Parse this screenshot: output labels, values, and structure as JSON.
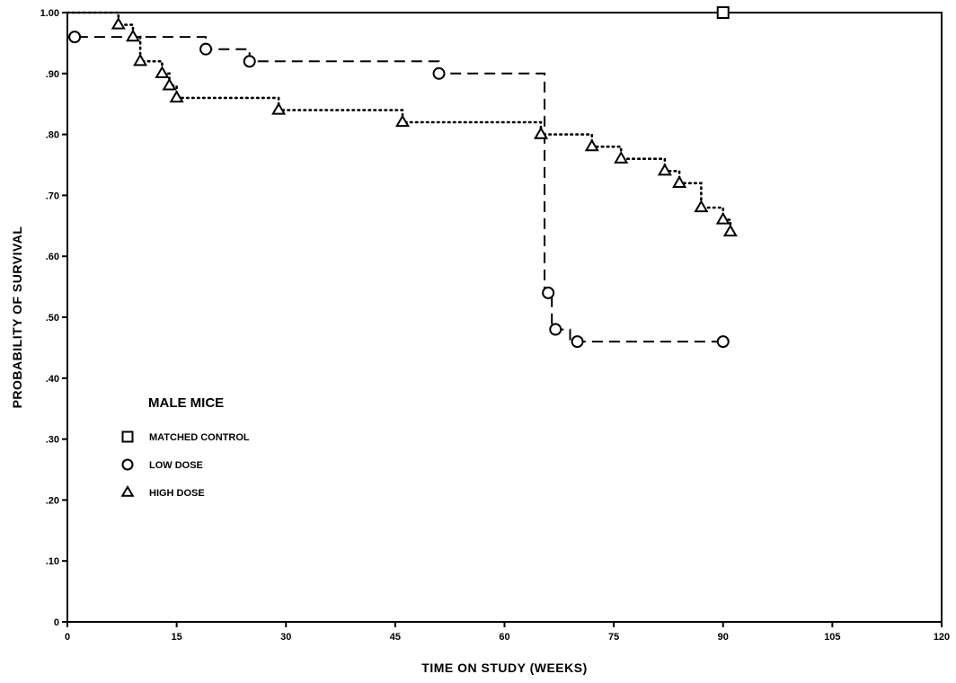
{
  "chart_data": {
    "type": "line",
    "subtype": "step",
    "xlabel": "TIME ON STUDY (WEEKS)",
    "ylabel": "PROBABILITY OF SURVIVAL",
    "xlim": [
      0,
      120
    ],
    "ylim": [
      0,
      1.0
    ],
    "x_ticks": [
      0,
      15,
      30,
      45,
      60,
      75,
      90,
      105,
      120
    ],
    "x_tick_labels": [
      "0",
      "15",
      "30",
      "45",
      "60",
      "75",
      "90",
      "105",
      "120"
    ],
    "y_ticks": [
      0,
      0.1,
      0.2,
      0.3,
      0.4,
      0.5,
      0.6,
      0.7,
      0.8,
      0.9,
      1.0
    ],
    "y_tick_labels": [
      "0",
      ".10",
      ".20",
      ".30",
      ".40",
      ".50",
      ".60",
      ".70",
      ".80",
      ".90",
      "1.00"
    ],
    "grid": false,
    "legend": {
      "title": "MALE MICE",
      "position": "lower-left"
    },
    "series": [
      {
        "name": "MATCHED CONTROL",
        "marker": "square",
        "line_style": "solid",
        "points": [
          [
            90,
            1.0
          ]
        ],
        "steps": [
          [
            0,
            1.0
          ],
          [
            90,
            1.0
          ]
        ]
      },
      {
        "name": "LOW DOSE",
        "marker": "circle",
        "line_style": "dashed",
        "points": [
          [
            1,
            0.96
          ],
          [
            19,
            0.94
          ],
          [
            25,
            0.92
          ],
          [
            51,
            0.9
          ],
          [
            66,
            0.54
          ],
          [
            67,
            0.48
          ],
          [
            70,
            0.46
          ],
          [
            90,
            0.46
          ]
        ],
        "steps": [
          [
            0,
            1.0
          ],
          [
            0,
            0.96
          ],
          [
            19,
            0.96
          ],
          [
            19,
            0.94
          ],
          [
            25,
            0.94
          ],
          [
            25,
            0.92
          ],
          [
            51,
            0.92
          ],
          [
            51,
            0.9
          ],
          [
            65.5,
            0.9
          ],
          [
            65.5,
            0.54
          ],
          [
            66.5,
            0.54
          ],
          [
            66.5,
            0.48
          ],
          [
            69,
            0.48
          ],
          [
            69,
            0.46
          ],
          [
            90,
            0.46
          ]
        ]
      },
      {
        "name": "HIGH DOSE",
        "marker": "triangle",
        "line_style": "dotted",
        "points": [
          [
            7,
            0.98
          ],
          [
            9,
            0.96
          ],
          [
            10,
            0.92
          ],
          [
            13,
            0.9
          ],
          [
            14,
            0.88
          ],
          [
            15,
            0.86
          ],
          [
            29,
            0.84
          ],
          [
            46,
            0.82
          ],
          [
            65,
            0.8
          ],
          [
            72,
            0.78
          ],
          [
            76,
            0.76
          ],
          [
            82,
            0.74
          ],
          [
            84,
            0.72
          ],
          [
            87,
            0.68
          ],
          [
            90,
            0.66
          ],
          [
            91,
            0.64
          ]
        ],
        "steps": [
          [
            0,
            1.0
          ],
          [
            7,
            1.0
          ],
          [
            7,
            0.98
          ],
          [
            9,
            0.98
          ],
          [
            9,
            0.96
          ],
          [
            10,
            0.96
          ],
          [
            10,
            0.92
          ],
          [
            13,
            0.92
          ],
          [
            13,
            0.9
          ],
          [
            14,
            0.9
          ],
          [
            14,
            0.88
          ],
          [
            15,
            0.88
          ],
          [
            15,
            0.86
          ],
          [
            29,
            0.86
          ],
          [
            29,
            0.84
          ],
          [
            46,
            0.84
          ],
          [
            46,
            0.82
          ],
          [
            65,
            0.82
          ],
          [
            65,
            0.8
          ],
          [
            72,
            0.8
          ],
          [
            72,
            0.78
          ],
          [
            76,
            0.78
          ],
          [
            76,
            0.76
          ],
          [
            82,
            0.76
          ],
          [
            82,
            0.74
          ],
          [
            84,
            0.74
          ],
          [
            84,
            0.72
          ],
          [
            87,
            0.72
          ],
          [
            87,
            0.68
          ],
          [
            90,
            0.68
          ],
          [
            90,
            0.66
          ],
          [
            91,
            0.66
          ],
          [
            91,
            0.64
          ]
        ]
      }
    ]
  }
}
